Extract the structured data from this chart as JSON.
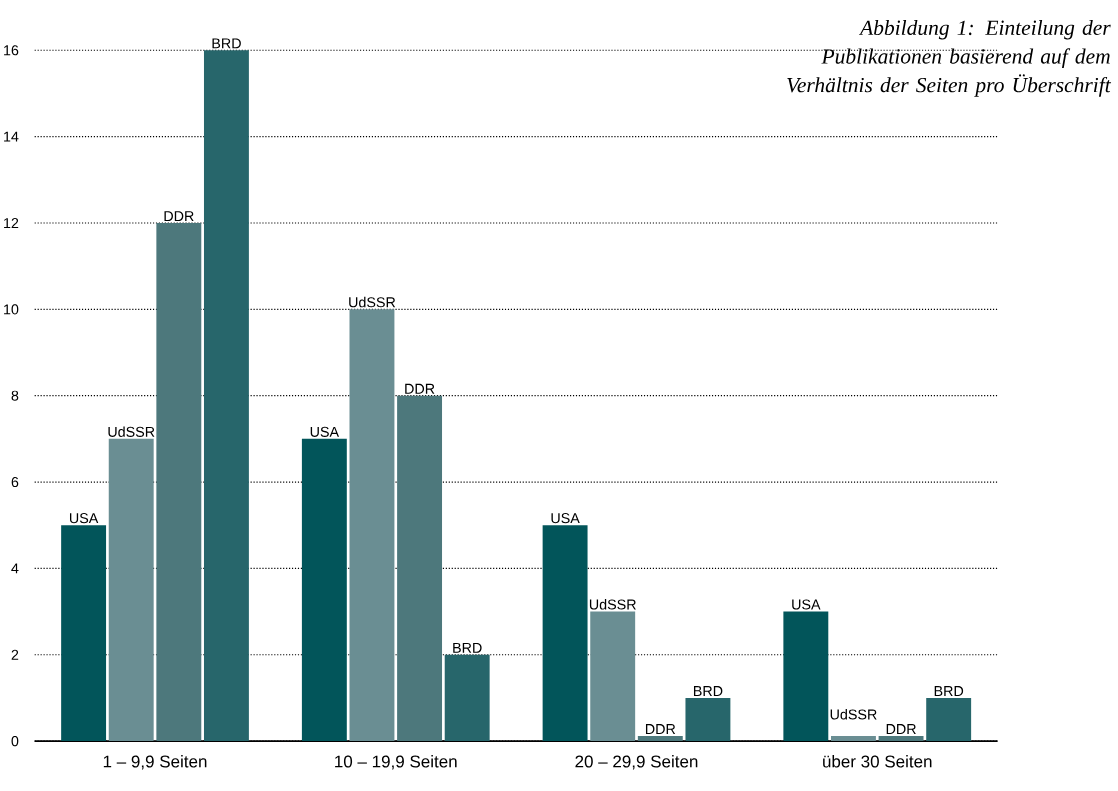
{
  "chart_data": {
    "type": "bar",
    "title": "Abbildung 1: Einteilung der Publikationen basierend auf dem Verhältnis der Seiten pro Überschrift",
    "categories": [
      "1 – 9,9 Seiten",
      "10 – 19,9 Seiten",
      "20 – 29,9 Seiten",
      "über 30 Seiten"
    ],
    "series": [
      {
        "name": "USA",
        "color": "#02555a",
        "values": [
          5,
          7,
          5,
          3
        ]
      },
      {
        "name": "UdSSR",
        "color": "#6a8e93",
        "values": [
          7,
          10,
          3,
          0.12
        ]
      },
      {
        "name": "DDR",
        "color": "#4d787c",
        "values": [
          12,
          8,
          0.12,
          0.12
        ]
      },
      {
        "name": "BRD",
        "color": "#27666b",
        "values": [
          16,
          2,
          1,
          1
        ]
      }
    ],
    "ylim": [
      0,
      16
    ],
    "yticks": [
      0,
      2,
      4,
      6,
      8,
      10,
      12,
      14,
      16
    ],
    "grid": "y"
  }
}
